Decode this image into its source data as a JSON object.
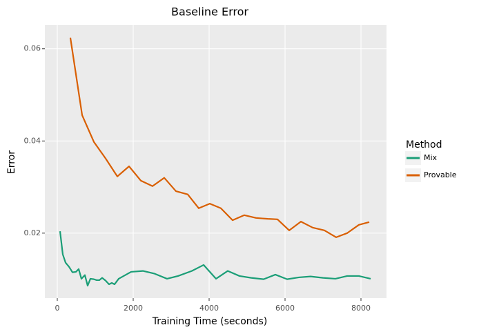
{
  "chart_data": {
    "type": "line",
    "title": "Baseline Error",
    "x_label": "Training Time (seconds)",
    "y_label": "Error",
    "legend_title": "Method",
    "xlim": [
      -327,
      8673
    ],
    "ylim": [
      0.0059,
      0.0652
    ],
    "xticks": [
      0,
      2000,
      4000,
      6000,
      8000
    ],
    "yticks": [
      {
        "value": 0.02,
        "label": "0.02"
      },
      {
        "value": 0.04,
        "label": "0.04"
      },
      {
        "value": 0.06,
        "label": "0.06"
      }
    ],
    "grid": true,
    "series": [
      {
        "name": "Mix",
        "color": "#1b9e77",
        "x": [
          73,
          145,
          218,
          309,
          400,
          491,
          564,
          636,
          727,
          800,
          873,
          964,
          1036,
          1109,
          1182,
          1273,
          1364,
          1436,
          1509,
          1618,
          1945,
          2255,
          2564,
          2891,
          3182,
          3545,
          3855,
          4182,
          4491,
          4800,
          5109,
          5436,
          5745,
          6055,
          6364,
          6673,
          7000,
          7327,
          7636,
          7945,
          8255
        ],
        "values": [
          0.0204,
          0.0154,
          0.0136,
          0.0127,
          0.0115,
          0.0116,
          0.0122,
          0.0101,
          0.0109,
          0.0086,
          0.0101,
          0.01,
          0.0098,
          0.0098,
          0.0103,
          0.0097,
          0.0089,
          0.0092,
          0.0089,
          0.0101,
          0.0116,
          0.0118,
          0.0112,
          0.0101,
          0.0107,
          0.0118,
          0.0131,
          0.0101,
          0.0118,
          0.0107,
          0.0103,
          0.01,
          0.011,
          0.01,
          0.0104,
          0.0106,
          0.0103,
          0.0101,
          0.0107,
          0.0107,
          0.0101
        ]
      },
      {
        "name": "Provable",
        "color": "#d95f02",
        "x": [
          345,
          655,
          964,
          1273,
          1582,
          1891,
          2200,
          2509,
          2818,
          3127,
          3436,
          3727,
          4018,
          4309,
          4618,
          4927,
          5236,
          5545,
          5800,
          6109,
          6418,
          6727,
          7036,
          7345,
          7636,
          7945,
          8218
        ],
        "values": [
          0.0624,
          0.0456,
          0.0398,
          0.0362,
          0.0323,
          0.0345,
          0.0314,
          0.0302,
          0.032,
          0.0291,
          0.0284,
          0.0254,
          0.0264,
          0.0254,
          0.0228,
          0.0239,
          0.0233,
          0.0231,
          0.023,
          0.0206,
          0.0225,
          0.0212,
          0.0206,
          0.0191,
          0.02,
          0.0218,
          0.0224
        ]
      }
    ]
  }
}
